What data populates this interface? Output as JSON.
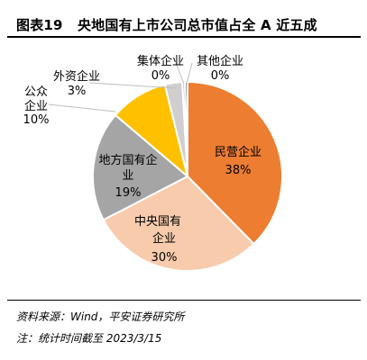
{
  "header": {
    "figure_no": "图表19",
    "title": "央地国有上市公司总市值占全 A 近五成"
  },
  "chart_data": {
    "type": "pie",
    "slices": [
      {
        "name": "民营企业",
        "value": 38,
        "label": "38%",
        "color": "#ED7D31"
      },
      {
        "name": "中央国有企业",
        "value": 30,
        "label": "30%",
        "color": "#F8CBAD"
      },
      {
        "name": "地方国有企业",
        "value": 19,
        "label": "19%",
        "color": "#A5A5A5"
      },
      {
        "name": "公众企业",
        "value": 10,
        "label": "10%",
        "color": "#FFC000"
      },
      {
        "name": "外资企业",
        "value": 3,
        "label": "3%",
        "color": "#D0CECE"
      },
      {
        "name": "集体企业",
        "value": 0,
        "label": "0%",
        "color": "#BFBFBF"
      },
      {
        "name": "其他企业",
        "value": 0,
        "label": "0%",
        "color": "#7F7F7F"
      }
    ]
  },
  "footer": {
    "source": "资料来源：Wind，平安证券研究所",
    "note": "注：统计时间截至 2023/3/15"
  }
}
